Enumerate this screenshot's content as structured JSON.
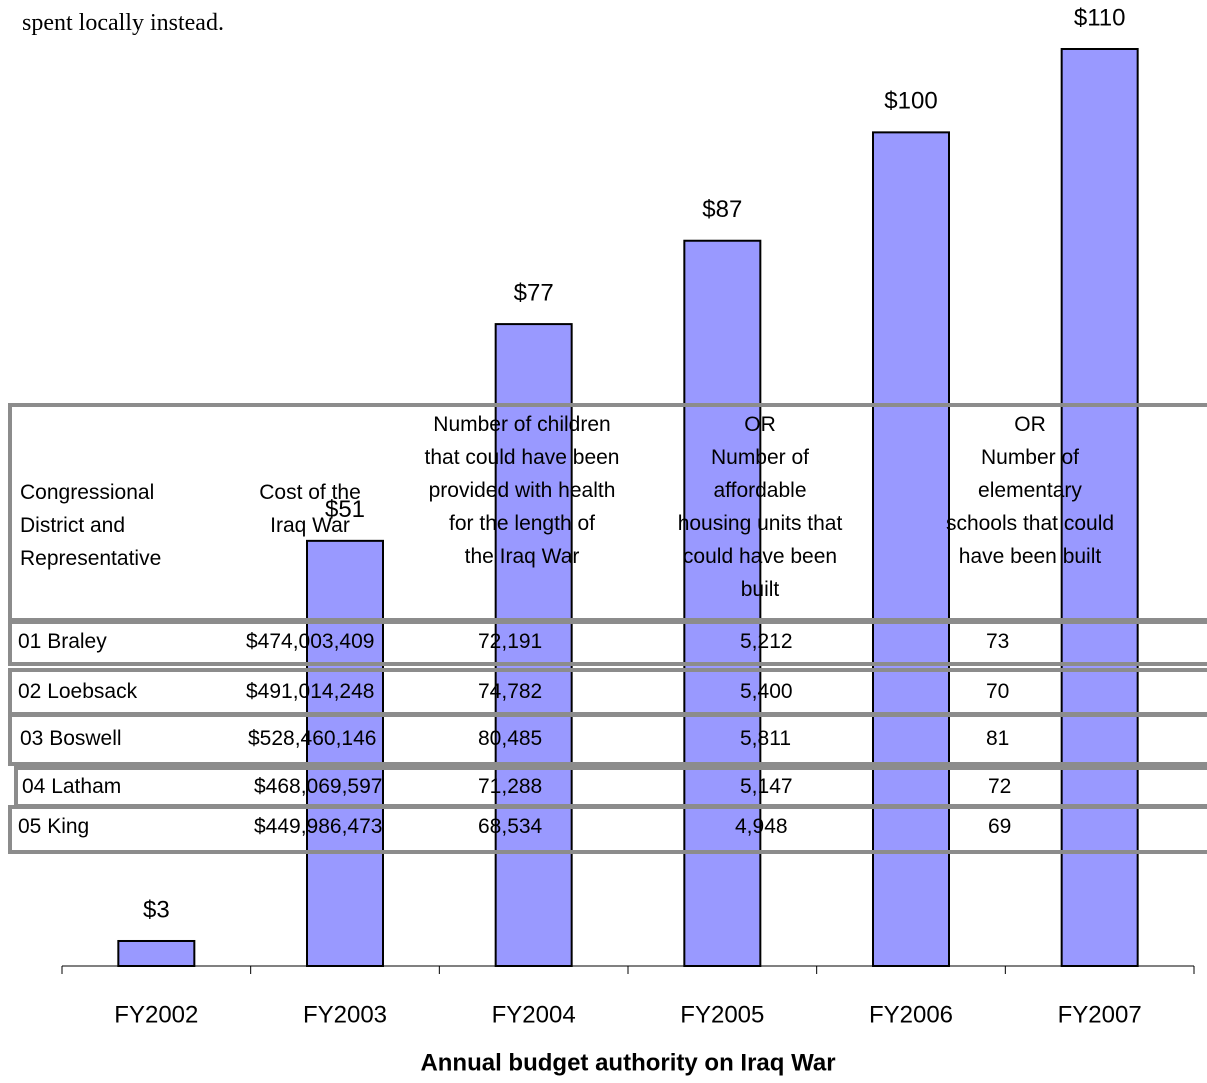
{
  "intro_text": "spent locally instead.",
  "chart_data": {
    "type": "bar",
    "categories": [
      "FY2002",
      "FY2003",
      "FY2004",
      "FY2005",
      "FY2006",
      "FY2007"
    ],
    "values": [
      3,
      51,
      77,
      87,
      100,
      110
    ],
    "value_labels": [
      "$3",
      "$51",
      "$77",
      "$87",
      "$100",
      "$110"
    ],
    "color": "#9999ff",
    "x_label": "Annual budget authority on Iraq War"
  },
  "table": {
    "columns": [
      "Congressional\nDistrict and\nRepresentative",
      "Cost of the\nIraq War",
      "Number of children\nthat could have been\nprovided with health\nfor the length of\nthe Iraq War",
      "OR\nNumber of\naffordable\nhousing units that\ncould have been\nbuilt",
      "OR\nNumber of\nelementary\nschools that could\nhave been built"
    ],
    "rows": [
      [
        "01  Braley",
        "$474,003,409",
        "72,191",
        "5,212",
        "73"
      ],
      [
        "02  Loebsack",
        "$491,014,248",
        "74,782",
        "5,400",
        "70"
      ],
      [
        "03  Boswell",
        "$528,460,146",
        "80,485",
        "5,811",
        "81"
      ],
      [
        "04  Latham",
        "$468,069,597",
        "71,288",
        "5,147",
        "72"
      ],
      [
        "05  King",
        "$449,986,473",
        "68,534",
        "4,948",
        "69"
      ]
    ]
  }
}
